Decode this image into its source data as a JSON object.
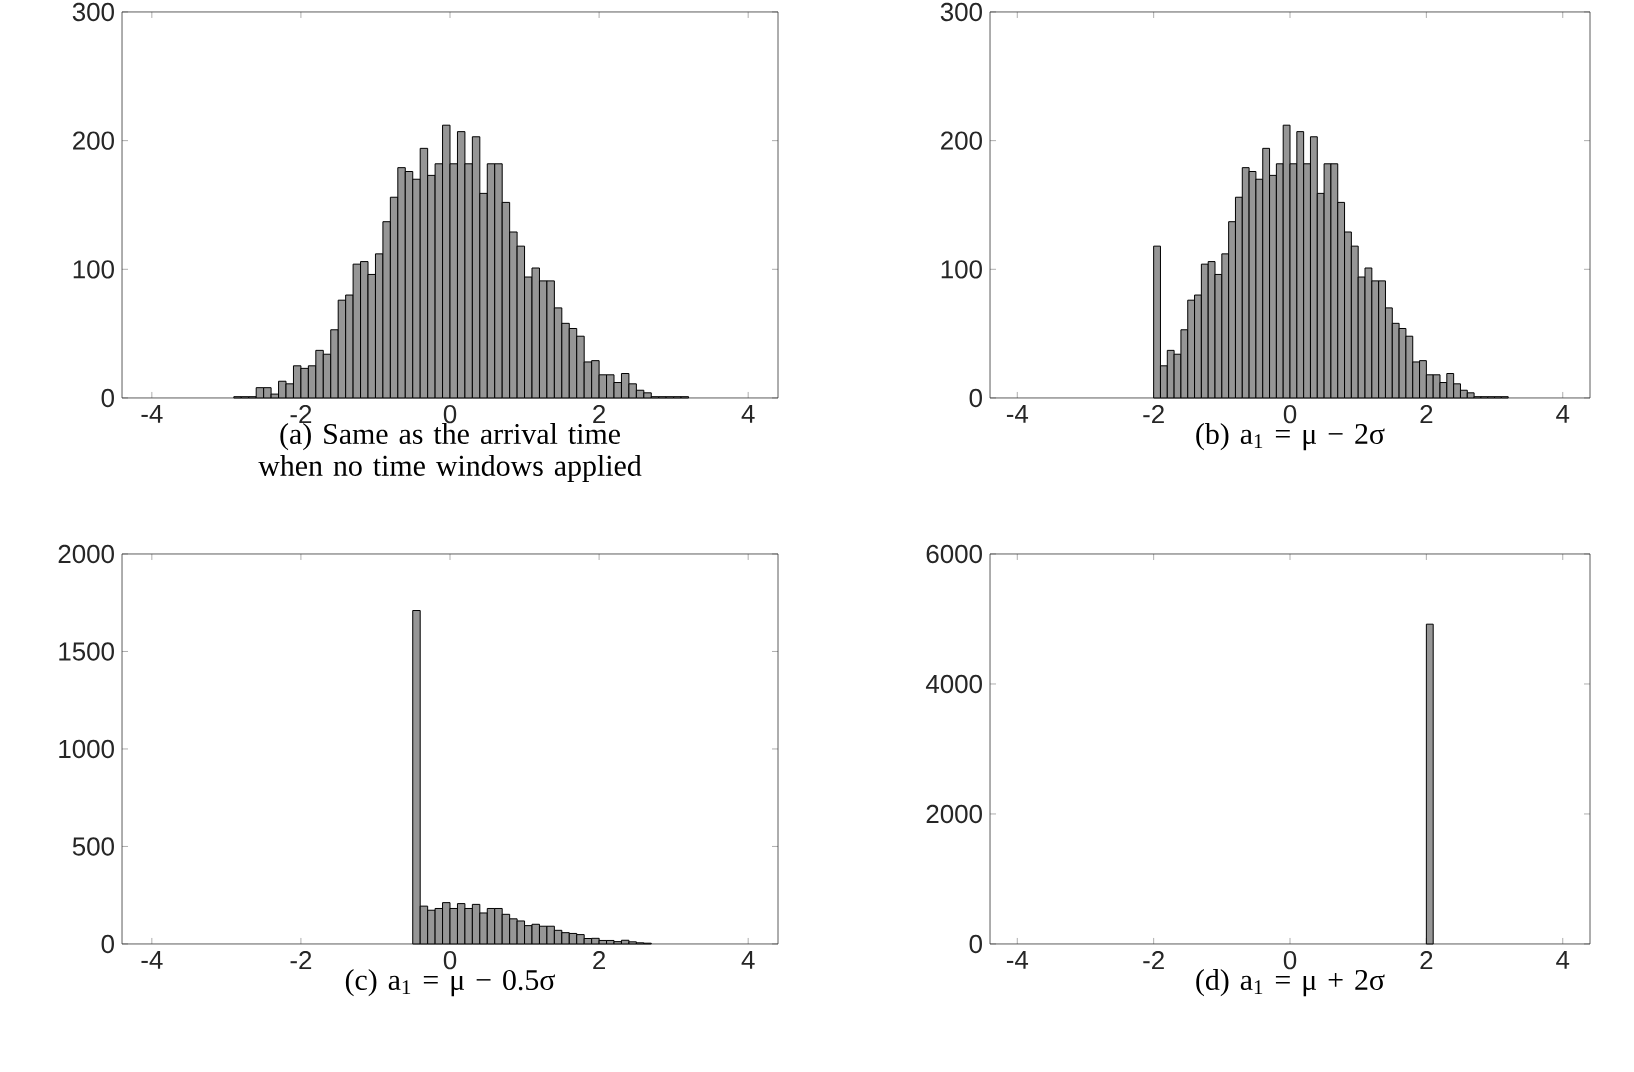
{
  "chart_data": [
    {
      "type": "histogram",
      "color": "#969696",
      "xlabel": "(a)  Same as the arrival time when no time windows applied",
      "xlim": [
        -4.4,
        4.4
      ],
      "xticks": [
        -4,
        -2,
        0,
        2,
        4
      ],
      "ylim": [
        0,
        300
      ],
      "yticks": [
        0,
        100,
        200,
        300
      ],
      "bins": [
        -2.9,
        -2.8,
        -2.7,
        -2.6,
        -2.5,
        -2.4,
        -2.3,
        -2.2,
        -2.1,
        -2.0,
        -1.9,
        -1.8,
        -1.7,
        -1.6,
        -1.5,
        -1.4,
        -1.3,
        -1.2,
        -1.1,
        -1.0,
        -0.9,
        -0.8,
        -0.7,
        -0.6,
        -0.5,
        -0.4,
        -0.3,
        -0.2,
        -0.1,
        0.0,
        0.1,
        0.2,
        0.3,
        0.4,
        0.5,
        0.6,
        0.7,
        0.8,
        0.9,
        1.0,
        1.1,
        1.2,
        1.3,
        1.4,
        1.5,
        1.6,
        1.7,
        1.8,
        1.9,
        2.0,
        2.1,
        2.2,
        2.3,
        2.4,
        2.5,
        2.6,
        2.7,
        2.8,
        2.9,
        3.0,
        3.1,
        3.2
      ],
      "values": [
        1,
        1,
        1,
        8,
        8,
        3,
        13,
        11,
        25,
        23,
        25,
        37,
        34,
        53,
        76,
        80,
        104,
        106,
        96,
        112,
        137,
        156,
        179,
        176,
        170,
        194,
        173,
        182,
        212,
        182,
        207,
        182,
        203,
        159,
        182,
        182,
        152,
        129,
        118,
        94,
        101,
        91,
        91,
        70,
        58,
        54,
        48,
        28,
        29,
        18,
        18,
        12,
        19,
        11,
        6,
        4,
        1,
        1,
        1,
        1,
        1
      ]
    },
    {
      "type": "histogram",
      "color": "#969696",
      "xlabel": "(b) a$_{1}$ = μ − 2σ",
      "xlim": [
        -4.4,
        4.4
      ],
      "xticks": [
        -4,
        -2,
        0,
        2,
        4
      ],
      "ylim": [
        0,
        300
      ],
      "yticks": [
        0,
        100,
        200,
        300
      ],
      "bins": [
        -2.0,
        -1.9,
        -1.8,
        -1.7,
        -1.6,
        -1.5,
        -1.4,
        -1.3,
        -1.2,
        -1.1,
        -1.0,
        -0.9,
        -0.8,
        -0.7,
        -0.6,
        -0.5,
        -0.4,
        -0.3,
        -0.2,
        -0.1,
        0.0,
        0.1,
        0.2,
        0.3,
        0.4,
        0.5,
        0.6,
        0.7,
        0.8,
        0.9,
        1.0,
        1.1,
        1.2,
        1.3,
        1.4,
        1.5,
        1.6,
        1.7,
        1.8,
        1.9,
        2.0,
        2.1,
        2.2,
        2.3,
        2.4,
        2.5,
        2.6,
        2.7,
        2.8,
        2.9,
        3.0,
        3.1,
        3.2
      ],
      "values": [
        118,
        25,
        37,
        34,
        53,
        76,
        80,
        104,
        106,
        96,
        112,
        137,
        156,
        179,
        176,
        170,
        194,
        173,
        182,
        212,
        182,
        207,
        182,
        203,
        159,
        182,
        182,
        152,
        129,
        118,
        94,
        101,
        91,
        91,
        70,
        58,
        54,
        48,
        28,
        29,
        18,
        18,
        12,
        19,
        11,
        6,
        4,
        1,
        1,
        1,
        1,
        1
      ]
    },
    {
      "type": "histogram",
      "color": "#969696",
      "xlabel": "(c) a$_{1}$ = μ − 0.5σ",
      "xlim": [
        -4.4,
        4.4
      ],
      "xticks": [
        -4,
        -2,
        0,
        2,
        4
      ],
      "ylim": [
        0,
        2000
      ],
      "yticks": [
        0,
        500,
        1000,
        1500,
        2000
      ],
      "bins": [
        -0.5,
        -0.4,
        -0.3,
        -0.2,
        -0.1,
        0.0,
        0.1,
        0.2,
        0.3,
        0.4,
        0.5,
        0.6,
        0.7,
        0.8,
        0.9,
        1.0,
        1.1,
        1.2,
        1.3,
        1.4,
        1.5,
        1.6,
        1.7,
        1.8,
        1.9,
        2.0,
        2.1,
        2.2,
        2.3,
        2.4,
        2.5,
        2.6,
        2.7
      ],
      "values": [
        1710,
        194,
        173,
        182,
        212,
        182,
        207,
        182,
        203,
        159,
        182,
        182,
        152,
        129,
        118,
        94,
        101,
        91,
        91,
        70,
        58,
        54,
        48,
        28,
        29,
        18,
        18,
        12,
        19,
        11,
        6,
        4
      ]
    },
    {
      "type": "histogram",
      "color": "#969696",
      "xlabel": "(d) a$_{1}$ = μ + 2σ",
      "xlim": [
        -4.4,
        4.4
      ],
      "xticks": [
        -4,
        -2,
        0,
        2,
        4
      ],
      "ylim": [
        0,
        6000
      ],
      "yticks": [
        0,
        2000,
        4000,
        6000
      ],
      "bins": [
        2.0,
        2.1
      ],
      "values": [
        4920
      ]
    }
  ]
}
